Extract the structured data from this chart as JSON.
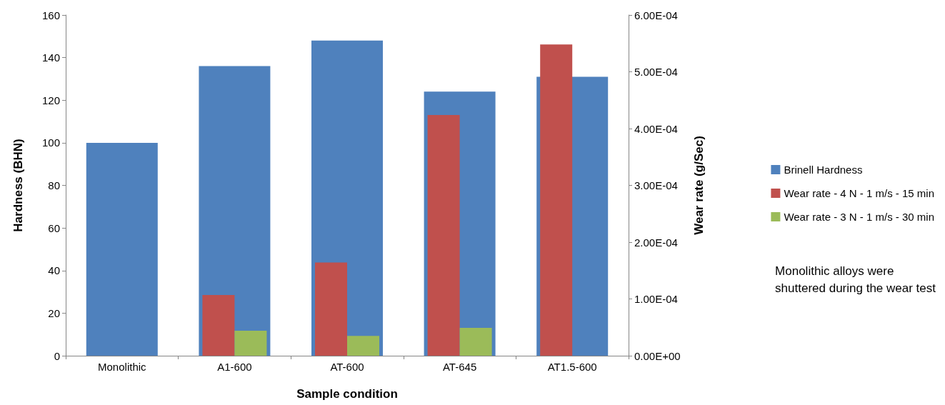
{
  "chart_data": {
    "type": "bar",
    "xlabel": "Sample condition",
    "ylabel": "Hardness (BHN)",
    "y2label": "Wear rate (g/Sec)",
    "categories": [
      "Monolithic",
      "A1-600",
      "AT-600",
      "AT-645",
      "AT1.5-600"
    ],
    "series": [
      {
        "name": "Brinell Hardness",
        "color": "#4f81bd",
        "values": [
          100,
          136,
          148,
          124,
          131
        ]
      },
      {
        "name": "Wear rate - 4 N - 1 m/s - 15 min",
        "color": "#c0504d",
        "axis": "y2",
        "values": [
          null,
          0.000107,
          0.000164,
          0.000424,
          0.000548
        ]
      },
      {
        "name": "Wear rate - 3 N - 1 m/s - 30 min",
        "color": "#9bbb59",
        "axis": "y2",
        "values": [
          null,
          4.4e-05,
          3.5e-05,
          4.9e-05,
          null
        ]
      }
    ],
    "ylim": [
      0,
      160
    ],
    "yticks": [
      0,
      20,
      40,
      60,
      80,
      100,
      120,
      140,
      160
    ],
    "y2lim": [
      0,
      0.0006
    ],
    "y2ticks": [
      {
        "value": 0,
        "label": "0.00E+00"
      },
      {
        "value": 0.0001,
        "label": "1.00E-04"
      },
      {
        "value": 0.0002,
        "label": "2.00E-04"
      },
      {
        "value": 0.0003,
        "label": "3.00E-04"
      },
      {
        "value": 0.0004,
        "label": "4.00E-04"
      },
      {
        "value": 0.0005,
        "label": "5.00E-04"
      },
      {
        "value": 0.0006,
        "label": "6.00E-04"
      }
    ],
    "grid": false,
    "legend": "right",
    "annotations": [
      "Monolithic alloys were\nshuttered during the wear test"
    ]
  }
}
